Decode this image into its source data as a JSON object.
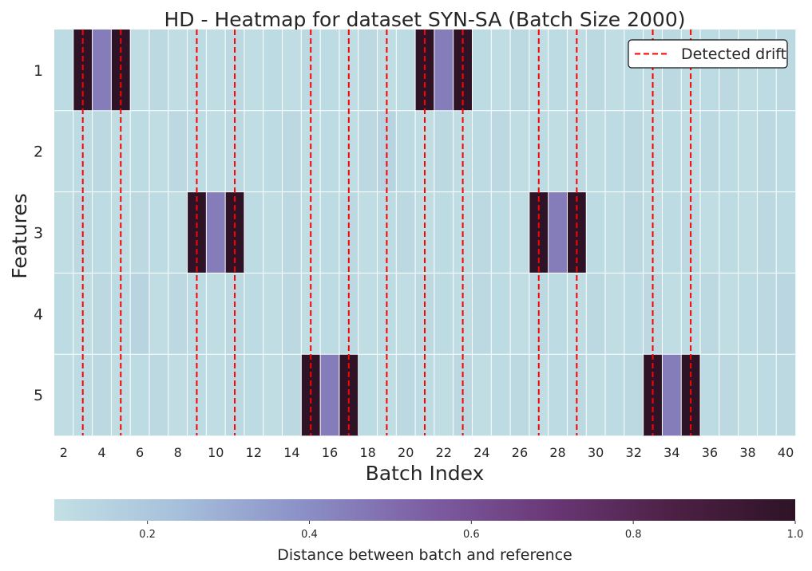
{
  "chart_data": {
    "type": "heatmap",
    "title": "HD - Heatmap for dataset SYN-SA (Batch Size 2000)",
    "xlabel": "Batch Index",
    "ylabel": "Features",
    "x_ticks": [
      "2",
      "4",
      "6",
      "8",
      "10",
      "12",
      "14",
      "16",
      "18",
      "20",
      "22",
      "24",
      "26",
      "28",
      "30",
      "32",
      "34",
      "36",
      "38",
      "40"
    ],
    "rows": [
      "1",
      "2",
      "3",
      "4",
      "5"
    ],
    "batches": [
      2,
      3,
      4,
      5,
      6,
      7,
      8,
      9,
      10,
      11,
      12,
      13,
      14,
      15,
      16,
      17,
      18,
      19,
      20,
      21,
      22,
      23,
      24,
      25,
      26,
      27,
      28,
      29,
      30,
      31,
      32,
      33,
      34,
      35,
      36,
      37,
      38,
      39,
      40
    ],
    "values": [
      [
        0.11,
        1.0,
        0.45,
        1.0,
        0.1,
        0.12,
        0.1,
        0.11,
        0.1,
        0.12,
        0.1,
        0.11,
        0.1,
        0.12,
        0.11,
        0.1,
        0.12,
        0.1,
        0.11,
        1.0,
        0.45,
        1.0,
        0.11,
        0.1,
        0.12,
        0.1,
        0.11,
        0.1,
        0.12,
        0.1,
        0.11,
        0.1,
        0.12,
        0.1,
        0.11,
        0.12,
        0.1,
        0.11,
        0.12
      ],
      [
        0.1,
        0.11,
        0.12,
        0.1,
        0.11,
        0.1,
        0.12,
        0.11,
        0.1,
        0.12,
        0.1,
        0.11,
        0.12,
        0.1,
        0.11,
        0.1,
        0.12,
        0.14,
        0.11,
        0.1,
        0.12,
        0.1,
        0.11,
        0.12,
        0.1,
        0.11,
        0.1,
        0.12,
        0.1,
        0.11,
        0.12,
        0.1,
        0.11,
        0.1,
        0.12,
        0.11,
        0.1,
        0.12,
        0.11
      ],
      [
        0.1,
        0.12,
        0.11,
        0.1,
        0.12,
        0.11,
        0.1,
        1.0,
        0.45,
        1.0,
        0.11,
        0.1,
        0.12,
        0.1,
        0.11,
        0.12,
        0.1,
        0.11,
        0.12,
        0.1,
        0.11,
        0.1,
        0.12,
        0.11,
        0.1,
        1.0,
        0.45,
        1.0,
        0.11,
        0.1,
        0.12,
        0.1,
        0.11,
        0.12,
        0.1,
        0.11,
        0.1,
        0.12,
        0.11
      ],
      [
        0.11,
        0.1,
        0.12,
        0.11,
        0.14,
        0.1,
        0.12,
        0.11,
        0.1,
        0.12,
        0.11,
        0.1,
        0.12,
        0.1,
        0.11,
        0.12,
        0.1,
        0.11,
        0.1,
        0.12,
        0.11,
        0.1,
        0.12,
        0.11,
        0.1,
        0.12,
        0.11,
        0.1,
        0.12,
        0.1,
        0.11,
        0.12,
        0.1,
        0.11,
        0.12,
        0.1,
        0.11,
        0.12,
        0.13
      ],
      [
        0.1,
        0.11,
        0.12,
        0.1,
        0.11,
        0.12,
        0.1,
        0.11,
        0.1,
        0.12,
        0.11,
        0.1,
        0.12,
        1.0,
        0.45,
        1.0,
        0.11,
        0.1,
        0.12,
        0.11,
        0.1,
        0.12,
        0.1,
        0.11,
        0.12,
        0.1,
        0.11,
        0.12,
        0.1,
        0.11,
        0.12,
        1.0,
        0.45,
        1.0,
        0.11,
        0.12,
        0.1,
        0.11,
        0.12
      ]
    ],
    "detected_drift_batches": [
      3,
      5,
      9,
      11,
      15,
      17,
      19,
      21,
      23,
      27,
      29,
      33,
      35
    ],
    "drift_line_color": "#ff0000",
    "legend": {
      "label": "Detected drift",
      "placement": "top-right"
    },
    "colorbar": {
      "label": "Distance between batch and reference",
      "range": [
        0.085,
        1.0
      ],
      "ticks": [
        "0.2",
        "0.4",
        "0.6",
        "0.8",
        "1.0"
      ],
      "colors": [
        "#c2e0e4",
        "#a6c0db",
        "#8b91c7",
        "#7d5fa4",
        "#6a3877",
        "#4d2145",
        "#2e1326"
      ]
    },
    "grid": true
  }
}
